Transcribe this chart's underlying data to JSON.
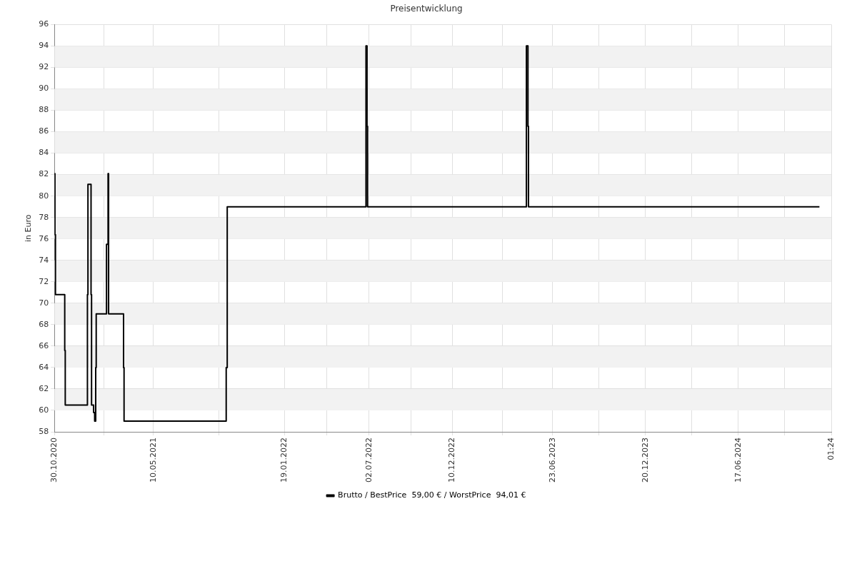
{
  "chart_data": {
    "type": "step",
    "title": "Preisentwicklung",
    "ylabel": "in Euro",
    "x": [
      "2020-10-30",
      "2020-10-31",
      "2020-11-01",
      "2020-11-19",
      "2020-11-20",
      "2021-01-02",
      "2021-01-03",
      "2021-01-08",
      "2021-01-09",
      "2021-01-10",
      "2021-01-14",
      "2021-01-16",
      "2021-01-18",
      "2021-01-19",
      "2021-02-08",
      "2021-02-11",
      "2021-02-12",
      "2021-03-13",
      "2021-03-14",
      "2021-09-28",
      "2021-09-30",
      "2022-06-26",
      "2022-06-28",
      "2022-06-29",
      "2023-05-03",
      "2023-05-06",
      "2023-05-07",
      "2024-11-21"
    ],
    "series": [
      {
        "name": "Brutto / BestPrice  59,00 € / WorstPrice  94,01 €",
        "color": "#000000",
        "values": [
          82.1,
          76.4,
          70.8,
          65.6,
          60.5,
          70.8,
          81.1,
          81.1,
          70.8,
          60.5,
          59.8,
          59,
          64,
          69,
          75.5,
          82.1,
          69,
          64,
          59,
          64,
          79,
          94.01,
          86.5,
          79,
          94.01,
          86.5,
          79,
          79
        ]
      }
    ],
    "xlim": [
      "2020-10-30",
      "2024-12-14"
    ],
    "xticks": [
      {
        "value": "2020-10-30",
        "label": "30.10.2020"
      },
      {
        "value": "2021-02-03",
        "label": null
      },
      {
        "value": "2021-05-10",
        "label": "10.05.2021"
      },
      {
        "value": "2021-09-14",
        "label": null
      },
      {
        "value": "2022-01-19",
        "label": "19.01.2022"
      },
      {
        "value": "2022-04-11",
        "label": null
      },
      {
        "value": "2022-07-02",
        "label": "02.07.2022"
      },
      {
        "value": "2022-09-21",
        "label": null
      },
      {
        "value": "2022-12-10",
        "label": "10.12.2022"
      },
      {
        "value": "2023-03-17",
        "label": null
      },
      {
        "value": "2023-06-23",
        "label": "23.06.2023"
      },
      {
        "value": "2023-09-21",
        "label": null
      },
      {
        "value": "2023-12-20",
        "label": "20.12.2023"
      },
      {
        "value": "2024-03-19",
        "label": null
      },
      {
        "value": "2024-06-17",
        "label": "17.06.2024"
      },
      {
        "value": "2024-09-15",
        "label": null
      },
      {
        "value": "2024-12-14",
        "label": "01:24"
      }
    ],
    "ylim": [
      58,
      96
    ],
    "yticks": [
      58,
      60,
      62,
      64,
      66,
      68,
      70,
      72,
      74,
      76,
      78,
      80,
      82,
      84,
      86,
      88,
      90,
      92,
      94,
      96
    ],
    "grid": true,
    "legend": "bottom",
    "marker": "none",
    "line_style": "solid"
  }
}
